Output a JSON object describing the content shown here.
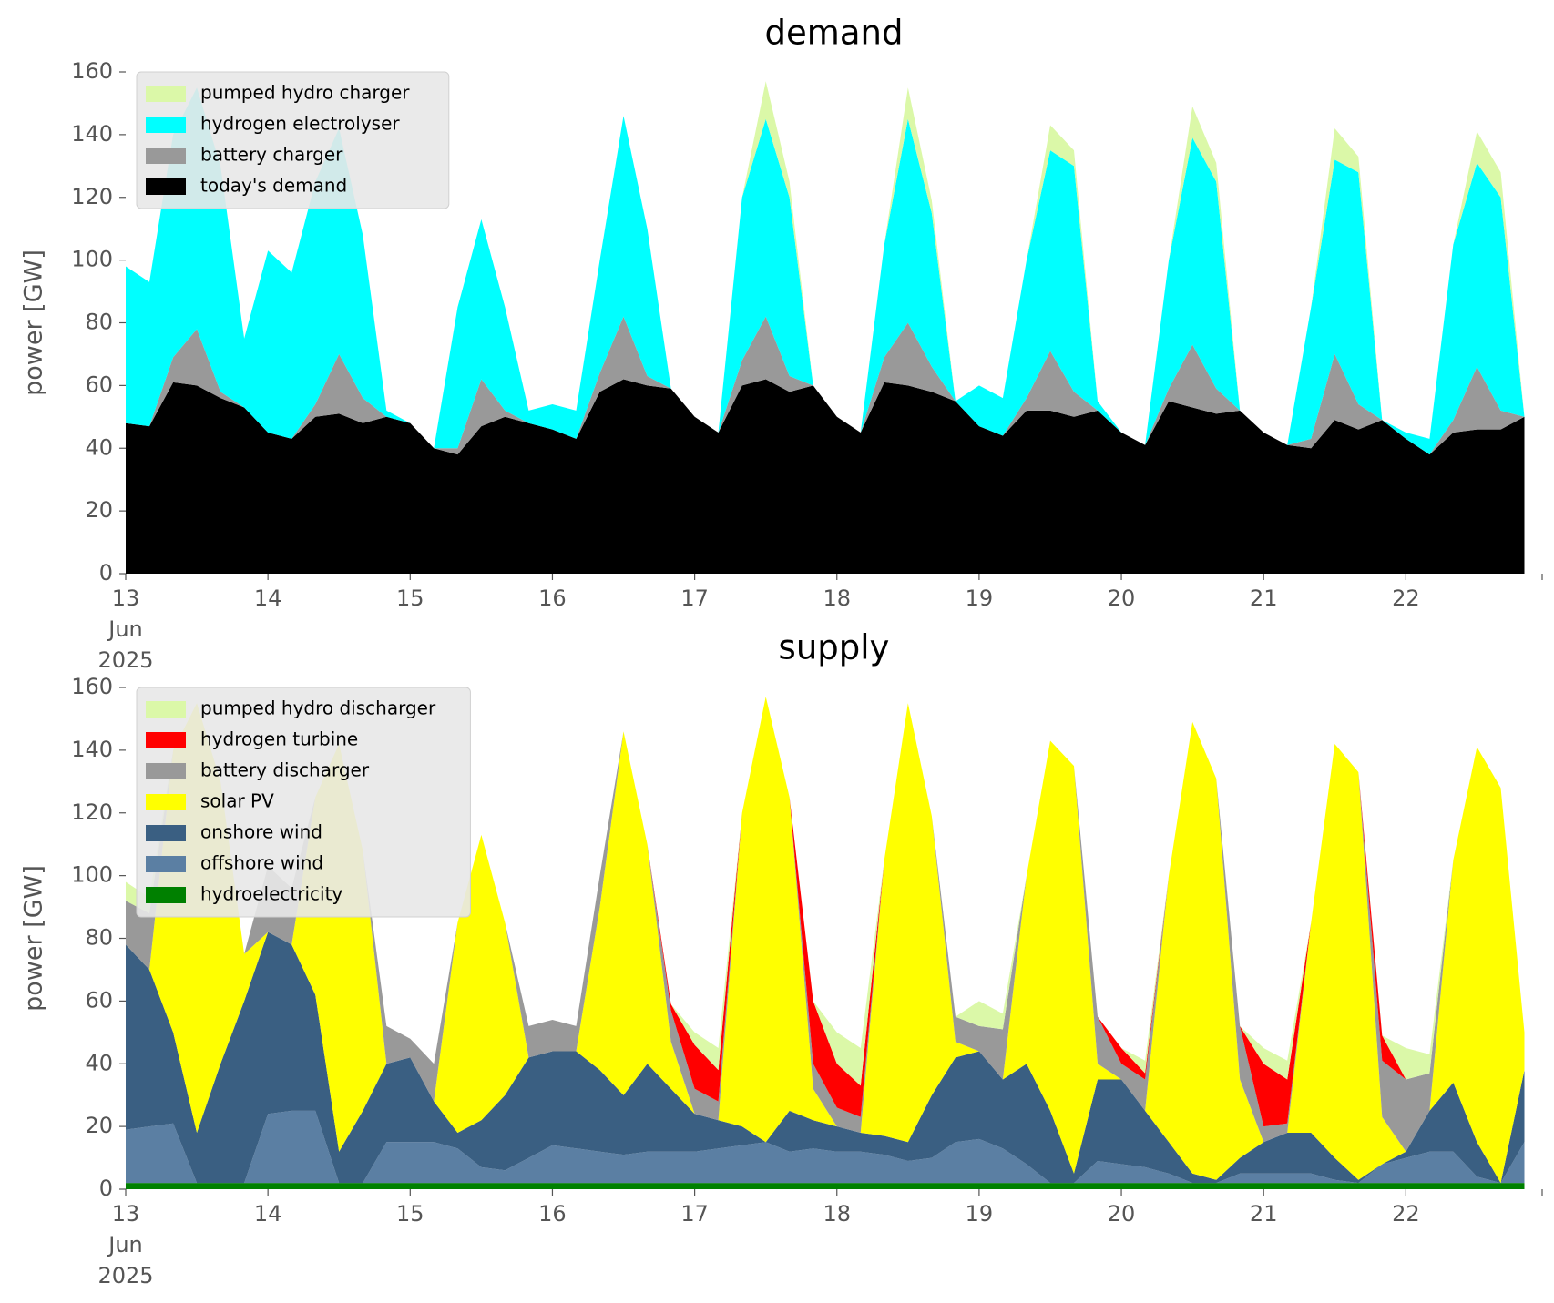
{
  "chart_data": [
    {
      "type": "stacked_area",
      "title": "demand",
      "y_label": "power [GW]",
      "legend": "upper left",
      "x": [
        "2025-06-13T00:00",
        "2025-06-13T04:00",
        "2025-06-13T08:00",
        "2025-06-13T12:00",
        "2025-06-13T16:00",
        "2025-06-13T20:00",
        "2025-06-14T00:00",
        "2025-06-14T04:00",
        "2025-06-14T08:00",
        "2025-06-14T12:00",
        "2025-06-14T16:00",
        "2025-06-14T20:00",
        "2025-06-15T00:00",
        "2025-06-15T04:00",
        "2025-06-15T08:00",
        "2025-06-15T12:00",
        "2025-06-15T16:00",
        "2025-06-15T20:00",
        "2025-06-16T00:00",
        "2025-06-16T04:00",
        "2025-06-16T08:00",
        "2025-06-16T12:00",
        "2025-06-16T16:00",
        "2025-06-16T20:00",
        "2025-06-17T00:00",
        "2025-06-17T04:00",
        "2025-06-17T08:00",
        "2025-06-17T12:00",
        "2025-06-17T16:00",
        "2025-06-17T20:00",
        "2025-06-18T00:00",
        "2025-06-18T04:00",
        "2025-06-18T08:00",
        "2025-06-18T12:00",
        "2025-06-18T16:00",
        "2025-06-18T20:00",
        "2025-06-19T00:00",
        "2025-06-19T04:00",
        "2025-06-19T08:00",
        "2025-06-19T12:00",
        "2025-06-19T16:00",
        "2025-06-19T20:00",
        "2025-06-20T00:00",
        "2025-06-20T04:00",
        "2025-06-20T08:00",
        "2025-06-20T12:00",
        "2025-06-20T16:00",
        "2025-06-20T20:00",
        "2025-06-21T00:00",
        "2025-06-21T04:00",
        "2025-06-21T08:00",
        "2025-06-21T12:00",
        "2025-06-21T16:00",
        "2025-06-21T20:00",
        "2025-06-22T00:00",
        "2025-06-22T04:00",
        "2025-06-22T08:00",
        "2025-06-22T12:00",
        "2025-06-22T16:00",
        "2025-06-22T20:00"
      ],
      "series": [
        {
          "name": "today's demand",
          "color": "#000000",
          "values": [
            48,
            47,
            61,
            60,
            56,
            53,
            45,
            43,
            50,
            51,
            48,
            50,
            48,
            40,
            38,
            47,
            50,
            48,
            46,
            43,
            58,
            62,
            60,
            59,
            50,
            45,
            60,
            62,
            58,
            60,
            50,
            45,
            61,
            60,
            58,
            55,
            47,
            44,
            52,
            52,
            50,
            52,
            45,
            41,
            55,
            53,
            51,
            52,
            45,
            41,
            40,
            49,
            46,
            49,
            43,
            38,
            45,
            46,
            46,
            50
          ]
        },
        {
          "name": "battery charger",
          "color": "#999999",
          "values": [
            0,
            0,
            8,
            18,
            2,
            0,
            0,
            0,
            4,
            19,
            8,
            0,
            0,
            0,
            2,
            15,
            2,
            0,
            0,
            0,
            6,
            20,
            3,
            0,
            0,
            0,
            8,
            20,
            5,
            0,
            0,
            0,
            8,
            20,
            8,
            0,
            0,
            0,
            4,
            19,
            8,
            0,
            0,
            0,
            4,
            20,
            8,
            0,
            0,
            0,
            3,
            21,
            8,
            0,
            0,
            0,
            4,
            20,
            6,
            0
          ]
        },
        {
          "name": "hydrogen electrolyser",
          "color": "#00ffff",
          "values": [
            50,
            46,
            71,
            77,
            72,
            22,
            58,
            53,
            71,
            72,
            52,
            2,
            0,
            0,
            45,
            51,
            33,
            4,
            8,
            9,
            36,
            64,
            47,
            0,
            0,
            0,
            52,
            63,
            57,
            0,
            0,
            0,
            36,
            65,
            49,
            0,
            13,
            12,
            44,
            64,
            72,
            3,
            0,
            0,
            41,
            66,
            66,
            0,
            0,
            0,
            42,
            62,
            74,
            0,
            2,
            5,
            56,
            65,
            68,
            0
          ]
        },
        {
          "name": "pumped hydro charger",
          "color": "#dbf8a8",
          "values": [
            0,
            0,
            0,
            0,
            0,
            0,
            0,
            0,
            0,
            0,
            0,
            0,
            0,
            0,
            0,
            0,
            0,
            0,
            0,
            0,
            0,
            0,
            0,
            0,
            0,
            0,
            0,
            12,
            5,
            0,
            0,
            0,
            0,
            10,
            4,
            0,
            0,
            0,
            0,
            8,
            5,
            0,
            0,
            0,
            0,
            10,
            6,
            0,
            0,
            0,
            0,
            10,
            5,
            0,
            0,
            0,
            0,
            10,
            8,
            0
          ]
        }
      ],
      "xlim": [
        "2025-06-13T00:00",
        "2025-06-22T23:00"
      ],
      "xticks": [
        {
          "value": "2025-06-13T00:00",
          "label": "13\nJun\n2025"
        },
        {
          "value": "2025-06-14T00:00",
          "label": "14"
        },
        {
          "value": "2025-06-15T00:00",
          "label": "15"
        },
        {
          "value": "2025-06-16T00:00",
          "label": "16"
        },
        {
          "value": "2025-06-17T00:00",
          "label": "17"
        },
        {
          "value": "2025-06-18T00:00",
          "label": "18"
        },
        {
          "value": "2025-06-19T00:00",
          "label": "19"
        },
        {
          "value": "2025-06-20T00:00",
          "label": "20"
        },
        {
          "value": "2025-06-21T00:00",
          "label": "21"
        },
        {
          "value": "2025-06-22T00:00",
          "label": "22"
        }
      ],
      "ylim": [
        0,
        160
      ],
      "yticks": [
        0,
        20,
        40,
        60,
        80,
        100,
        120,
        140,
        160
      ]
    },
    {
      "type": "stacked_area",
      "title": "supply",
      "y_label": "power [GW]",
      "legend": "upper left",
      "x": [
        "2025-06-13T00:00",
        "2025-06-13T04:00",
        "2025-06-13T08:00",
        "2025-06-13T12:00",
        "2025-06-13T16:00",
        "2025-06-13T20:00",
        "2025-06-14T00:00",
        "2025-06-14T04:00",
        "2025-06-14T08:00",
        "2025-06-14T12:00",
        "2025-06-14T16:00",
        "2025-06-14T20:00",
        "2025-06-15T00:00",
        "2025-06-15T04:00",
        "2025-06-15T08:00",
        "2025-06-15T12:00",
        "2025-06-15T16:00",
        "2025-06-15T20:00",
        "2025-06-16T00:00",
        "2025-06-16T04:00",
        "2025-06-16T08:00",
        "2025-06-16T12:00",
        "2025-06-16T16:00",
        "2025-06-16T20:00",
        "2025-06-17T00:00",
        "2025-06-17T04:00",
        "2025-06-17T08:00",
        "2025-06-17T12:00",
        "2025-06-17T16:00",
        "2025-06-17T20:00",
        "2025-06-18T00:00",
        "2025-06-18T04:00",
        "2025-06-18T08:00",
        "2025-06-18T12:00",
        "2025-06-18T16:00",
        "2025-06-18T20:00",
        "2025-06-19T00:00",
        "2025-06-19T04:00",
        "2025-06-19T08:00",
        "2025-06-19T12:00",
        "2025-06-19T16:00",
        "2025-06-19T20:00",
        "2025-06-20T00:00",
        "2025-06-20T04:00",
        "2025-06-20T08:00",
        "2025-06-20T12:00",
        "2025-06-20T16:00",
        "2025-06-20T20:00",
        "2025-06-21T00:00",
        "2025-06-21T04:00",
        "2025-06-21T08:00",
        "2025-06-21T12:00",
        "2025-06-21T16:00",
        "2025-06-21T20:00",
        "2025-06-22T00:00",
        "2025-06-22T04:00",
        "2025-06-22T08:00",
        "2025-06-22T12:00",
        "2025-06-22T16:00",
        "2025-06-22T20:00"
      ],
      "series": [
        {
          "name": "hydroelectricity",
          "color": "#008000",
          "values": [
            2,
            2,
            2,
            2,
            2,
            2,
            2,
            2,
            2,
            2,
            2,
            2,
            2,
            2,
            2,
            2,
            2,
            2,
            2,
            2,
            2,
            2,
            2,
            2,
            2,
            2,
            2,
            2,
            2,
            2,
            2,
            2,
            2,
            2,
            2,
            2,
            2,
            2,
            2,
            2,
            2,
            2,
            2,
            2,
            2,
            2,
            2,
            2,
            2,
            2,
            2,
            2,
            2,
            2,
            2,
            2,
            2,
            2,
            2,
            2
          ]
        },
        {
          "name": "offshore wind",
          "color": "#5b7fa3",
          "values": [
            17,
            18,
            19,
            0,
            0,
            0,
            22,
            23,
            23,
            0,
            0,
            13,
            13,
            13,
            11,
            5,
            4,
            8,
            12,
            11,
            10,
            9,
            10,
            10,
            10,
            11,
            12,
            13,
            10,
            11,
            10,
            10,
            9,
            7,
            8,
            13,
            14,
            11,
            6,
            0,
            0,
            7,
            6,
            5,
            3,
            0,
            0,
            3,
            3,
            3,
            3,
            1,
            0,
            6,
            8,
            10,
            10,
            2,
            0,
            13
          ]
        },
        {
          "name": "onshore wind",
          "color": "#3a5f82",
          "values": [
            59,
            50,
            29,
            16,
            38,
            58,
            58,
            53,
            37,
            10,
            23,
            25,
            27,
            13,
            5,
            15,
            24,
            32,
            30,
            31,
            26,
            19,
            28,
            20,
            12,
            9,
            6,
            0,
            13,
            9,
            8,
            6,
            6,
            6,
            20,
            27,
            28,
            22,
            32,
            23,
            3,
            26,
            27,
            18,
            10,
            3,
            1,
            5,
            10,
            13,
            13,
            7,
            1,
            0,
            2,
            13,
            22,
            11,
            0,
            23
          ]
        },
        {
          "name": "solar PV",
          "color": "#ffff00",
          "values": [
            0,
            0,
            90,
            137,
            90,
            15,
            0,
            0,
            63,
            130,
            83,
            0,
            0,
            0,
            67,
            91,
            55,
            0,
            0,
            0,
            52,
            116,
            70,
            15,
            0,
            0,
            100,
            142,
            100,
            10,
            0,
            0,
            88,
            140,
            89,
            5,
            0,
            0,
            60,
            118,
            130,
            5,
            0,
            0,
            85,
            144,
            128,
            25,
            0,
            0,
            67,
            132,
            130,
            15,
            0,
            0,
            71,
            126,
            126,
            12
          ]
        },
        {
          "name": "battery discharger",
          "color": "#999999",
          "values": [
            14,
            18,
            0,
            0,
            0,
            0,
            21,
            18,
            0,
            0,
            0,
            12,
            6,
            12,
            0,
            0,
            0,
            10,
            10,
            8,
            10,
            0,
            0,
            10,
            8,
            6,
            0,
            0,
            0,
            8,
            6,
            5,
            0,
            0,
            0,
            8,
            8,
            16,
            0,
            0,
            0,
            15,
            5,
            10,
            0,
            0,
            0,
            17,
            5,
            3,
            0,
            0,
            0,
            18,
            23,
            12,
            0,
            0,
            0,
            0
          ]
        },
        {
          "name": "hydrogen turbine",
          "color": "#ff0000",
          "values": [
            0,
            0,
            0,
            0,
            0,
            0,
            0,
            0,
            0,
            0,
            0,
            0,
            0,
            0,
            0,
            0,
            0,
            0,
            0,
            0,
            0,
            0,
            0,
            2,
            14,
            10,
            0,
            0,
            0,
            20,
            14,
            10,
            0,
            0,
            0,
            0,
            0,
            0,
            0,
            0,
            0,
            0,
            5,
            2,
            0,
            0,
            0,
            0,
            20,
            14,
            0,
            0,
            0,
            8,
            0,
            0,
            0,
            0,
            0,
            0
          ]
        },
        {
          "name": "pumped hydro discharger",
          "color": "#dbf8a8",
          "values": [
            6,
            5,
            0,
            0,
            0,
            0,
            0,
            0,
            0,
            0,
            0,
            0,
            0,
            0,
            0,
            0,
            0,
            0,
            0,
            0,
            0,
            0,
            0,
            0,
            4,
            7,
            0,
            0,
            0,
            0,
            10,
            12,
            0,
            0,
            0,
            0,
            8,
            5,
            0,
            0,
            0,
            0,
            0,
            4,
            0,
            0,
            0,
            0,
            5,
            6,
            0,
            0,
            0,
            0,
            10,
            6,
            0,
            0,
            0,
            0
          ]
        }
      ],
      "xlim": [
        "2025-06-13T00:00",
        "2025-06-22T23:00"
      ],
      "xticks": [
        {
          "value": "2025-06-13T00:00",
          "label": "13\nJun\n2025"
        },
        {
          "value": "2025-06-14T00:00",
          "label": "14"
        },
        {
          "value": "2025-06-15T00:00",
          "label": "15"
        },
        {
          "value": "2025-06-16T00:00",
          "label": "16"
        },
        {
          "value": "2025-06-17T00:00",
          "label": "17"
        },
        {
          "value": "2025-06-18T00:00",
          "label": "18"
        },
        {
          "value": "2025-06-19T00:00",
          "label": "19"
        },
        {
          "value": "2025-06-20T00:00",
          "label": "20"
        },
        {
          "value": "2025-06-21T00:00",
          "label": "21"
        },
        {
          "value": "2025-06-22T00:00",
          "label": "22"
        }
      ],
      "ylim": [
        0,
        160
      ],
      "yticks": [
        0,
        20,
        40,
        60,
        80,
        100,
        120,
        140,
        160
      ]
    }
  ]
}
